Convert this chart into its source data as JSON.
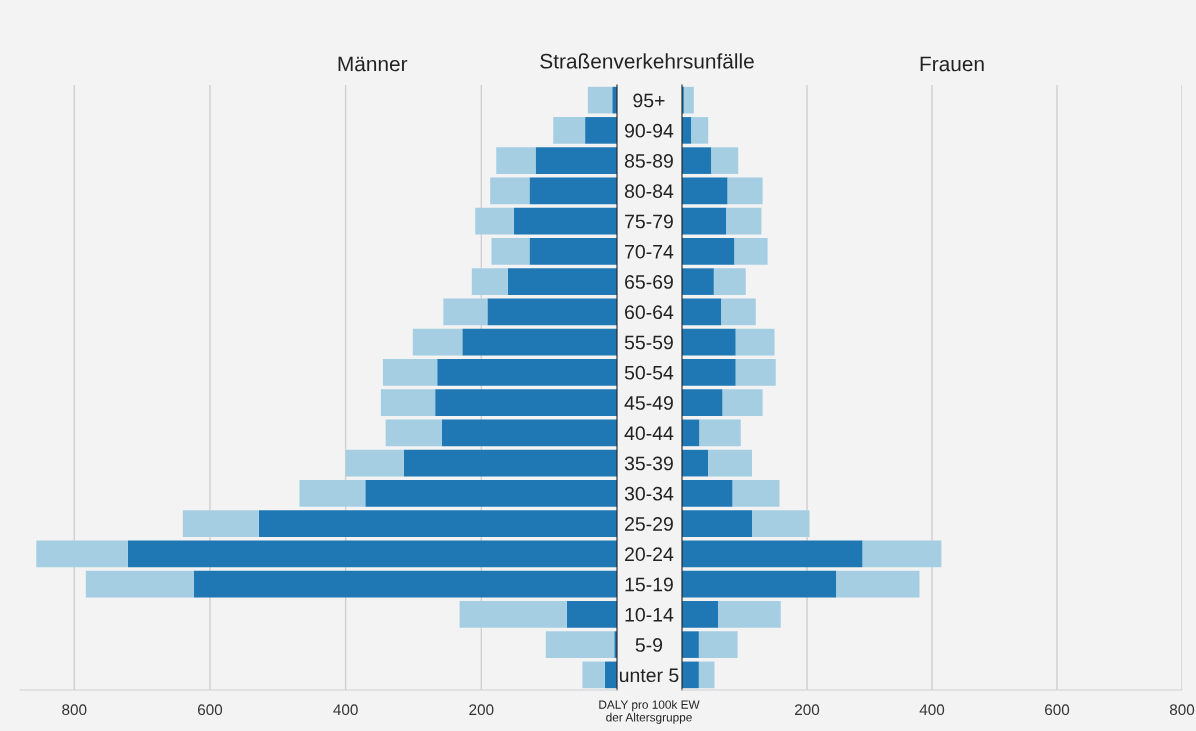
{
  "chart_data": [
    {
      "type": "bar",
      "orientation": "horizontal",
      "stacked": true,
      "title": "Männer",
      "xlabel": "DALY pro 100k EW\nder Altersgruppe",
      "annotations": [
        "Straßenverkehrsunfälle"
      ],
      "categories": [
        "95+",
        "90-94",
        "85-89",
        "80-84",
        "75-79",
        "70-74",
        "65-69",
        "60-64",
        "55-59",
        "50-54",
        "45-49",
        "40-44",
        "35-39",
        "30-34",
        "25-29",
        "20-24",
        "15-19",
        "10-14",
        "5-9",
        "unter 5"
      ],
      "series": [
        {
          "color": "#1f77b4",
          "values": [
            7,
            47,
            120,
            129,
            152,
            129,
            161,
            191,
            228,
            265,
            268,
            258,
            314,
            371,
            528,
            721,
            624,
            74,
            4,
            18
          ]
        },
        {
          "color": "#a6cee3",
          "values": [
            36,
            47,
            58,
            58,
            57,
            56,
            53,
            65,
            73,
            80,
            80,
            83,
            86,
            97,
            112,
            135,
            159,
            158,
            101,
            33
          ]
        }
      ],
      "xlim": [
        880,
        0
      ],
      "xticks": [
        800,
        600,
        400,
        200
      ],
      "grid": "x"
    },
    {
      "type": "bar",
      "orientation": "horizontal",
      "stacked": true,
      "title": "Frauen",
      "tick_labels": "x",
      "series": [
        {
          "color": "#1f77b4",
          "values": [
            3,
            15,
            47,
            73,
            71,
            84,
            51,
            63,
            86,
            86,
            65,
            28,
            42,
            81,
            112,
            289,
            247,
            58,
            27,
            27
          ]
        },
        {
          "color": "#a6cee3",
          "values": [
            16,
            27,
            43,
            56,
            56,
            53,
            51,
            55,
            62,
            64,
            64,
            66,
            70,
            75,
            92,
            126,
            133,
            100,
            62,
            25
          ]
        }
      ],
      "xlim": [
        0,
        800
      ],
      "xticks": [
        200,
        400,
        600,
        800
      ],
      "grid": "x"
    }
  ]
}
